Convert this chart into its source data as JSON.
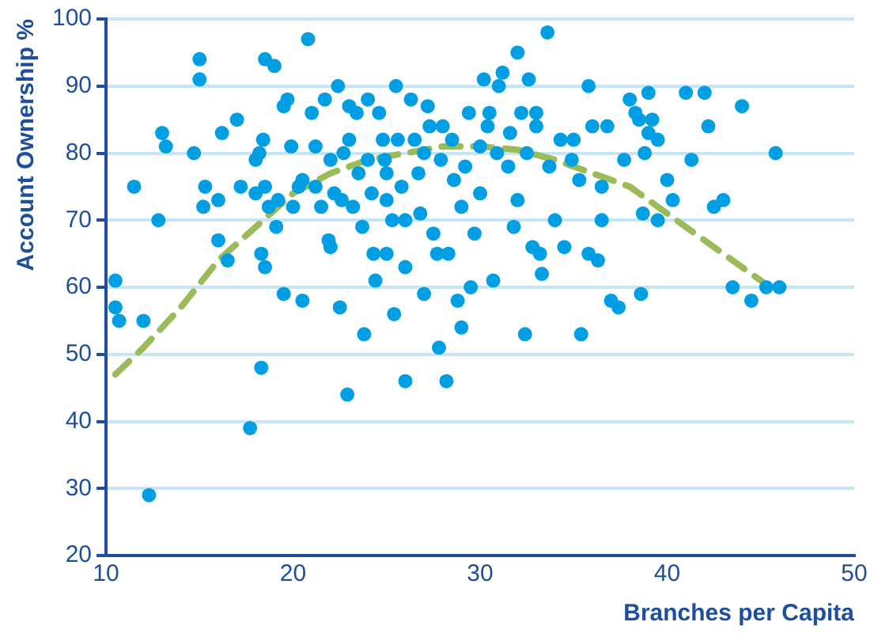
{
  "chart_data": {
    "type": "scatter",
    "xlabel": "Branches per Capita",
    "ylabel": "Account Ownership %",
    "xlim": [
      10,
      50
    ],
    "xticks": [
      10,
      20,
      30,
      40,
      50
    ],
    "ylim": [
      20,
      100
    ],
    "yticks": [
      20,
      30,
      40,
      50,
      60,
      70,
      80,
      90,
      100
    ],
    "grid": "y",
    "legend": false,
    "marker": "circle",
    "series": [
      {
        "color": "#009fe3",
        "x": [
          10.5,
          10.5,
          10.7,
          11.5,
          12,
          12.3,
          12.8,
          13,
          13.2,
          14.7,
          15,
          15,
          15.2,
          15.3,
          16,
          16.2,
          16,
          16.5,
          17,
          17.2,
          17.7,
          18,
          18,
          18.2,
          18.5,
          18.4,
          18.3,
          18.5,
          18.3,
          18.5,
          18.7,
          19,
          19.1,
          19.2,
          19.5,
          19.5,
          19.7,
          19.9,
          20,
          20.3,
          20.5,
          20.5,
          20.8,
          21,
          21.2,
          21.2,
          21.5,
          21.7,
          21.9,
          22,
          22,
          22.2,
          22.4,
          22.5,
          22.6,
          22.7,
          22.9,
          23,
          23,
          23.2,
          23.4,
          23.5,
          23.7,
          23.8,
          24,
          24,
          24.2,
          24.3,
          24.4,
          24.6,
          24.8,
          24.9,
          25,
          25,
          25,
          25.3,
          25.4,
          25.5,
          25.6,
          25.8,
          26,
          26,
          26,
          26.3,
          26.5,
          26.7,
          26.8,
          27,
          27,
          27.2,
          27.3,
          27.5,
          27.7,
          27.8,
          27.9,
          28,
          28.2,
          28.3,
          28.5,
          28.6,
          28.8,
          29,
          29,
          29.2,
          29.4,
          29.5,
          29.7,
          30,
          30,
          30.2,
          30.4,
          30.5,
          30.7,
          30.9,
          31,
          31.2,
          31.5,
          31.6,
          31.8,
          32,
          32,
          32.2,
          32.4,
          32.5,
          32.6,
          32.8,
          33,
          33,
          33.2,
          33.3,
          33.6,
          33.7,
          34,
          34.3,
          34.5,
          34.9,
          35,
          35.3,
          35.4,
          35.8,
          35.8,
          36,
          36.5,
          36.5,
          36.3,
          36.8,
          37,
          37.4,
          37.7,
          38,
          38.3,
          38.5,
          38.6,
          38.7,
          38.8,
          39,
          39,
          39.2,
          39.5,
          39.5,
          40,
          40.3,
          41,
          41.3,
          42,
          42.2,
          42.5,
          43,
          43.5,
          44,
          44.5,
          45.3,
          45.8,
          46
        ],
        "values": [
          61,
          57,
          55,
          75,
          55,
          29,
          70,
          83,
          81,
          80,
          94,
          91,
          72,
          75,
          73,
          83,
          67,
          64,
          85,
          75,
          39,
          74,
          79,
          80,
          94,
          82,
          65,
          63,
          48,
          75,
          72,
          93,
          69,
          73,
          87,
          59,
          88,
          81,
          72,
          75,
          58,
          76,
          97,
          86,
          81,
          75,
          72,
          88,
          67,
          66,
          79,
          74,
          90,
          57,
          73,
          80,
          44,
          87,
          82,
          72,
          86,
          77,
          69,
          53,
          79,
          88,
          74,
          65,
          61,
          86,
          82,
          79,
          77,
          73,
          65,
          70,
          56,
          90,
          82,
          75,
          70,
          63,
          46,
          88,
          82,
          77,
          71,
          80,
          59,
          87,
          84,
          68,
          65,
          51,
          79,
          84,
          46,
          65,
          82,
          76,
          58,
          54,
          72,
          78,
          86,
          60,
          68,
          74,
          81,
          91,
          84,
          86,
          61,
          80,
          90,
          92,
          78,
          83,
          69,
          73,
          95,
          86,
          53,
          80,
          91,
          66,
          86,
          84,
          65,
          62,
          98,
          78,
          70,
          82,
          66,
          79,
          82,
          76,
          53,
          65,
          90,
          84,
          75,
          70,
          64,
          84,
          58,
          57,
          79,
          88,
          86,
          85,
          59,
          71,
          80,
          83,
          89,
          85,
          82,
          70,
          76,
          73,
          89,
          79,
          89,
          84,
          72,
          73,
          60,
          87,
          58,
          60,
          80,
          60
        ]
      },
      {
        "type": "line",
        "color": "#9bbb59",
        "marker": "none",
        "line_style": "dashed",
        "x": [
          10.5,
          12,
          14,
          16,
          18,
          20,
          22,
          24,
          26,
          28,
          30,
          32,
          34,
          36,
          38,
          40,
          42,
          44,
          46
        ],
        "values": [
          47,
          51,
          57,
          64,
          69,
          74,
          77,
          79,
          80,
          81,
          81,
          80.5,
          79,
          77,
          75,
          71,
          67,
          63,
          59
        ]
      }
    ]
  }
}
